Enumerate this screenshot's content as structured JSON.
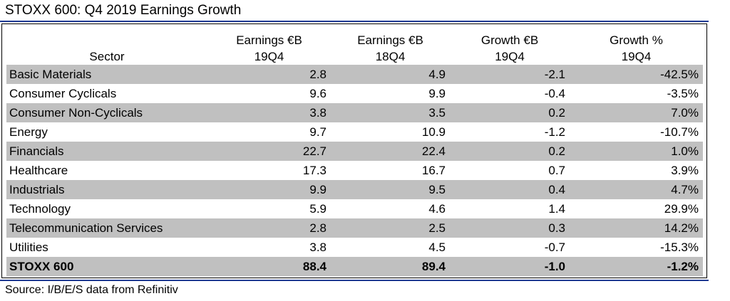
{
  "title": "STOXX 600: Q4 2019 Earnings Growth",
  "source": "Source: I/B/E/S data from Refinitiv",
  "colors": {
    "rule": "#1f3a93",
    "shade": "#c0c0c0",
    "frame": "#000000"
  },
  "chart_data": {
    "type": "table",
    "title": "STOXX 600: Q4 2019 Earnings Growth",
    "columns": [
      {
        "key": "sector",
        "line1": "",
        "line2": "Sector"
      },
      {
        "key": "earnings_19q4",
        "line1": "Earnings €B",
        "line2": "19Q4"
      },
      {
        "key": "earnings_18q4",
        "line1": "Earnings €B",
        "line2": "18Q4"
      },
      {
        "key": "growth_eur",
        "line1": "Growth €B",
        "line2": "19Q4"
      },
      {
        "key": "growth_pct",
        "line1": "Growth %",
        "line2": "19Q4"
      }
    ],
    "rows": [
      {
        "sector": "Basic Materials",
        "earnings_19q4": "2.8",
        "earnings_18q4": "4.9",
        "growth_eur": "-2.1",
        "growth_pct": "-42.5%"
      },
      {
        "sector": "Consumer Cyclicals",
        "earnings_19q4": "9.6",
        "earnings_18q4": "9.9",
        "growth_eur": "-0.4",
        "growth_pct": "-3.5%"
      },
      {
        "sector": "Consumer Non-Cyclicals",
        "earnings_19q4": "3.8",
        "earnings_18q4": "3.5",
        "growth_eur": "0.2",
        "growth_pct": "7.0%"
      },
      {
        "sector": "Energy",
        "earnings_19q4": "9.7",
        "earnings_18q4": "10.9",
        "growth_eur": "-1.2",
        "growth_pct": "-10.7%"
      },
      {
        "sector": "Financials",
        "earnings_19q4": "22.7",
        "earnings_18q4": "22.4",
        "growth_eur": "0.2",
        "growth_pct": "1.0%"
      },
      {
        "sector": "Healthcare",
        "earnings_19q4": "17.3",
        "earnings_18q4": "16.7",
        "growth_eur": "0.7",
        "growth_pct": "3.9%"
      },
      {
        "sector": "Industrials",
        "earnings_19q4": "9.9",
        "earnings_18q4": "9.5",
        "growth_eur": "0.4",
        "growth_pct": "4.7%"
      },
      {
        "sector": "Technology",
        "earnings_19q4": "5.9",
        "earnings_18q4": "4.6",
        "growth_eur": "1.4",
        "growth_pct": "29.9%"
      },
      {
        "sector": "Telecommunication Services",
        "earnings_19q4": "2.8",
        "earnings_18q4": "2.5",
        "growth_eur": "0.3",
        "growth_pct": "14.2%"
      },
      {
        "sector": "Utilities",
        "earnings_19q4": "3.8",
        "earnings_18q4": "4.5",
        "growth_eur": "-0.7",
        "growth_pct": "-15.3%"
      },
      {
        "sector": "STOXX 600",
        "earnings_19q4": "88.4",
        "earnings_18q4": "89.4",
        "growth_eur": "-1.0",
        "growth_pct": "-1.2%",
        "total": true
      }
    ]
  }
}
